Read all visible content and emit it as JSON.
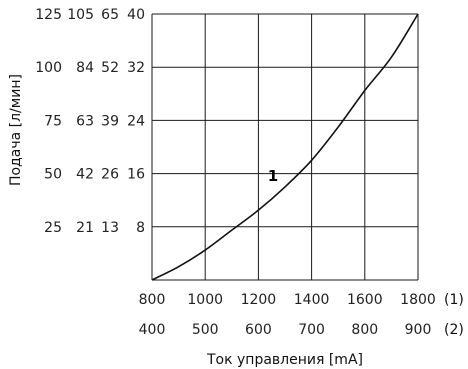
{
  "chart_data": {
    "type": "line",
    "ylabel": "Подача [л/мин]",
    "xlabel": "Ток управления [mA]",
    "x_axes": [
      {
        "id": "(1)",
        "ticks": [
          "800",
          "1000",
          "1200",
          "1400",
          "1600",
          "1800"
        ]
      },
      {
        "id": "(2)",
        "ticks": [
          "400",
          "500",
          "600",
          "700",
          "800",
          "900"
        ]
      }
    ],
    "y_axes": [
      {
        "ticks": [
          "25",
          "50",
          "75",
          "100",
          "125"
        ]
      },
      {
        "ticks": [
          "21",
          "42",
          "63",
          "84",
          "105"
        ]
      },
      {
        "ticks": [
          "13",
          "26",
          "39",
          "52",
          "65"
        ]
      },
      {
        "ticks": [
          "8",
          "16",
          "24",
          "32",
          "40"
        ]
      }
    ],
    "xlim": [
      800,
      1800
    ],
    "ylim": [
      0,
      40
    ],
    "grid": true,
    "series": [
      {
        "label": "1",
        "x": [
          800,
          900,
          1000,
          1100,
          1200,
          1300,
          1400,
          1500,
          1600,
          1700,
          1800
        ],
        "y": [
          0,
          2,
          4.5,
          7.5,
          10.5,
          14,
          18,
          23,
          28.5,
          33.5,
          40
        ]
      }
    ]
  }
}
